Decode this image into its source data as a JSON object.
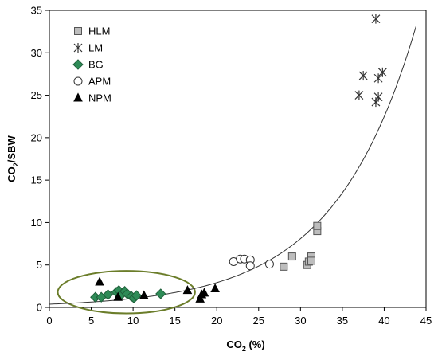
{
  "chart_data": {
    "type": "scatter",
    "xlabel": "CO",
    "xlabel_sub": "2",
    "xlabel_suffix": " (%)",
    "ylabel": "CO",
    "ylabel_sub": "2",
    "ylabel_suffix": "/SBW",
    "xlim": [
      0,
      45
    ],
    "ylim": [
      0,
      35
    ],
    "x_ticks": [
      0,
      5,
      10,
      15,
      20,
      25,
      30,
      35,
      40,
      45
    ],
    "y_ticks": [
      0,
      5,
      10,
      15,
      20,
      25,
      30,
      35
    ],
    "grid": false,
    "legend_position": "top-left",
    "series": [
      {
        "name": "HLM",
        "marker": "square",
        "color": "#bdbdbd",
        "points": [
          [
            28.0,
            4.8
          ],
          [
            29.0,
            6.0
          ],
          [
            30.8,
            5.0
          ],
          [
            31.0,
            5.4
          ],
          [
            31.3,
            6.0
          ],
          [
            31.3,
            5.5
          ],
          [
            32.0,
            9.0
          ],
          [
            32.0,
            9.6
          ]
        ]
      },
      {
        "name": "LM",
        "marker": "asterisk",
        "color": "#333333",
        "points": [
          [
            37.0,
            25.0
          ],
          [
            37.5,
            27.3
          ],
          [
            39.0,
            34.0
          ],
          [
            39.0,
            24.2
          ],
          [
            39.3,
            24.8
          ],
          [
            39.3,
            27.0
          ],
          [
            39.8,
            27.7
          ]
        ]
      },
      {
        "name": "BG",
        "marker": "diamond",
        "color": "#2e8b57",
        "points": [
          [
            5.5,
            1.2
          ],
          [
            6.2,
            1.2
          ],
          [
            7.0,
            1.5
          ],
          [
            8.0,
            1.8
          ],
          [
            8.3,
            2.0
          ],
          [
            8.6,
            1.5
          ],
          [
            9.0,
            1.9
          ],
          [
            9.3,
            1.6
          ],
          [
            9.8,
            1.3
          ],
          [
            10.1,
            1.1
          ],
          [
            10.4,
            1.4
          ],
          [
            13.3,
            1.6
          ]
        ]
      },
      {
        "name": "APM",
        "marker": "circle",
        "color": "#ffffff",
        "points": [
          [
            22.0,
            5.4
          ],
          [
            22.8,
            5.7
          ],
          [
            23.3,
            5.7
          ],
          [
            24.0,
            5.6
          ],
          [
            24.0,
            4.9
          ],
          [
            26.3,
            5.1
          ]
        ]
      },
      {
        "name": "NPM",
        "marker": "triangle",
        "color": "#000000",
        "points": [
          [
            6.0,
            3.0
          ],
          [
            8.2,
            1.2
          ],
          [
            11.3,
            1.4
          ],
          [
            16.5,
            2.0
          ],
          [
            18.0,
            1.0
          ],
          [
            18.2,
            1.5
          ],
          [
            18.5,
            1.7
          ],
          [
            19.8,
            2.2
          ]
        ]
      }
    ],
    "trend_curve": {
      "type": "exponential",
      "a": 0.38,
      "b": 0.102,
      "x_range": [
        0,
        43.8
      ]
    },
    "annotation_ellipse": {
      "cx": 9.2,
      "cy": 1.8,
      "rx": 8.2,
      "ry": 2.5,
      "color": "#6b7d2a"
    }
  }
}
